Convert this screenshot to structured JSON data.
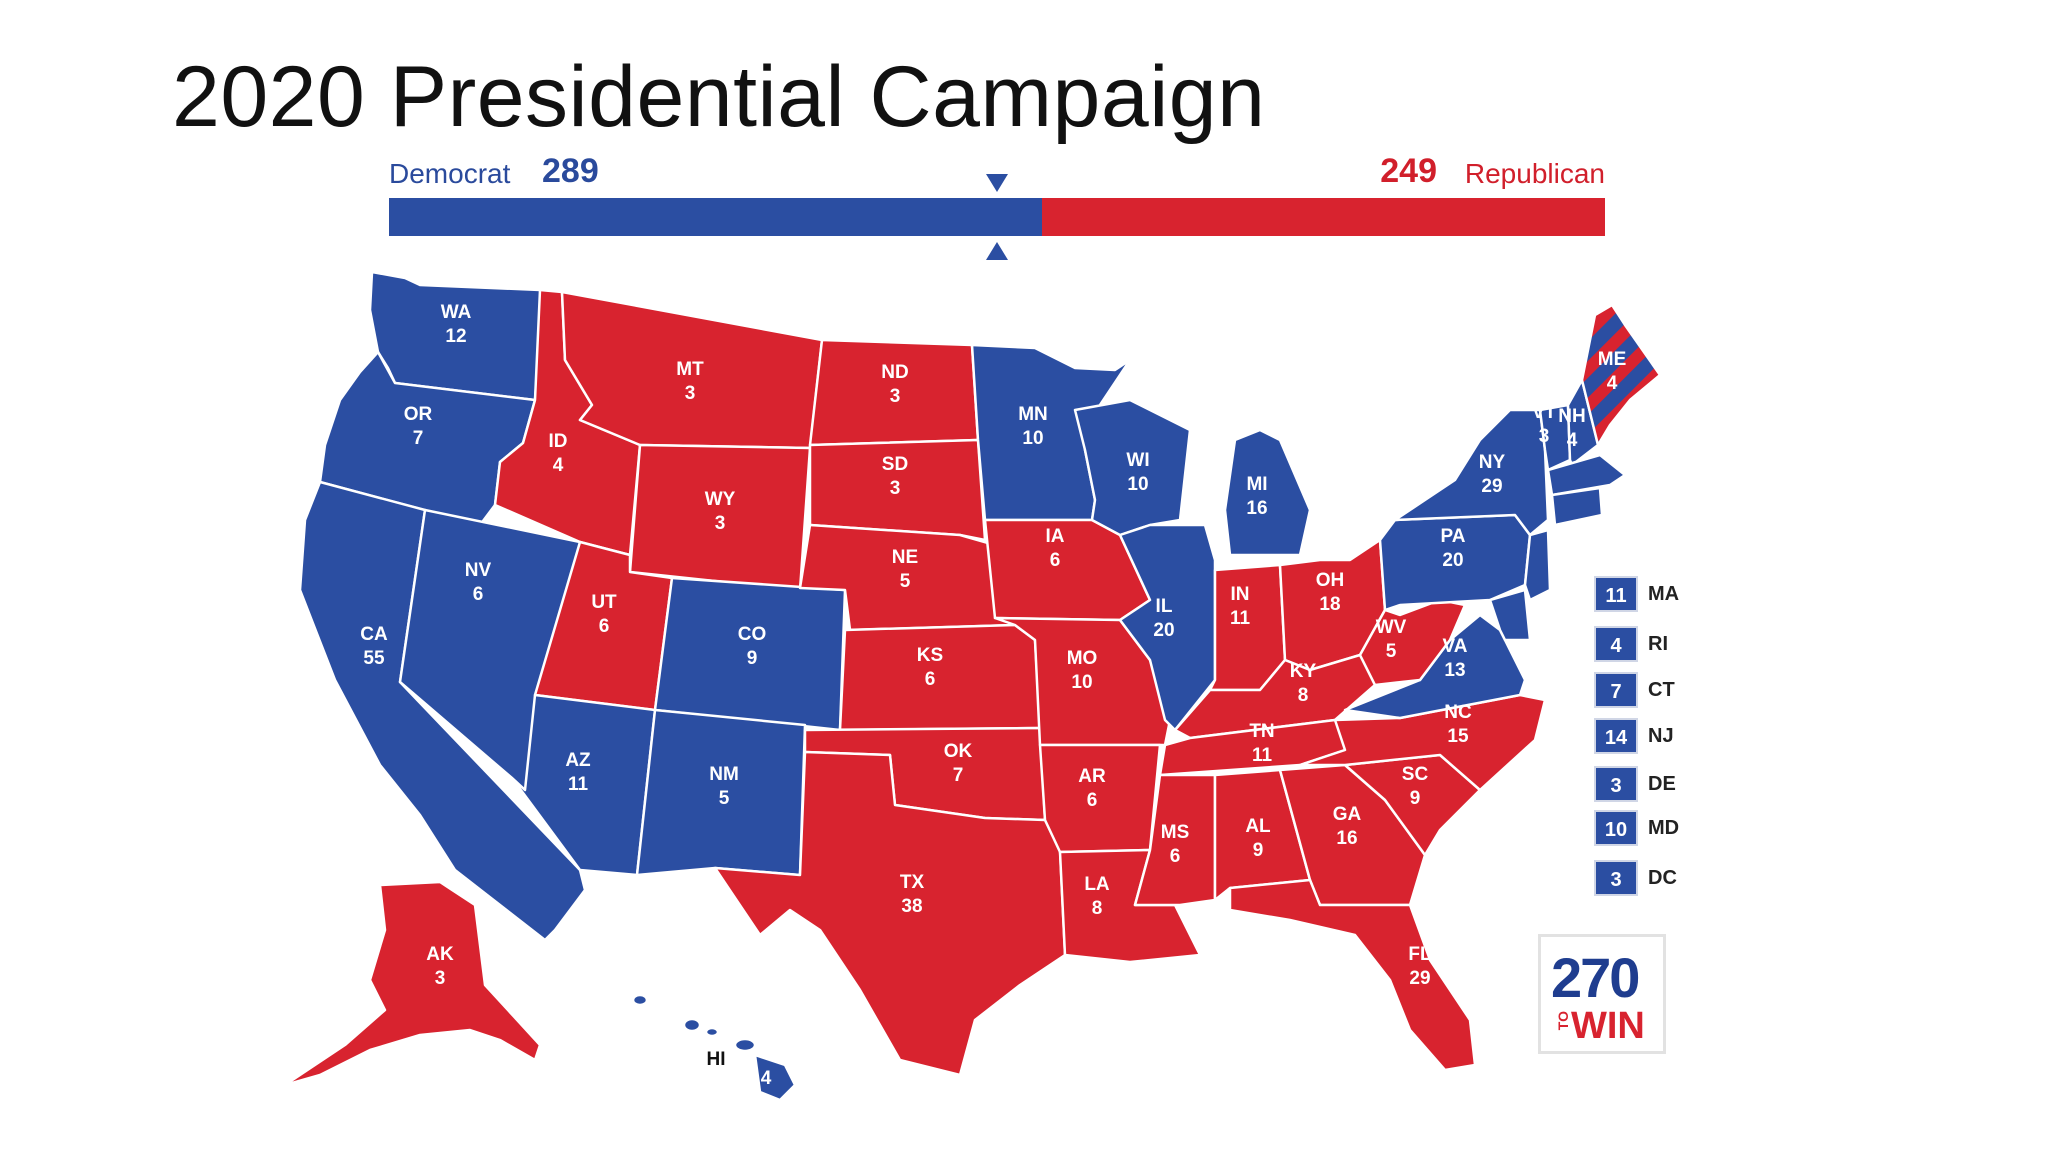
{
  "slide": {
    "title": "2020 Presidential Campaign"
  },
  "tally": {
    "democrat_label": "Democrat",
    "democrat_votes": "289",
    "republican_votes": "249",
    "republican_label": "Republican",
    "democrat_share": 0.537
  },
  "colors": {
    "democrat": "#2b4ea2",
    "republican": "#d8232f"
  },
  "states": {
    "WA": {
      "abbr": "WA",
      "ev": "12",
      "party": "D"
    },
    "OR": {
      "abbr": "OR",
      "ev": "7",
      "party": "D"
    },
    "CA": {
      "abbr": "CA",
      "ev": "55",
      "party": "D"
    },
    "NV": {
      "abbr": "NV",
      "ev": "6",
      "party": "D"
    },
    "ID": {
      "abbr": "ID",
      "ev": "4",
      "party": "R"
    },
    "MT": {
      "abbr": "MT",
      "ev": "3",
      "party": "R"
    },
    "WY": {
      "abbr": "WY",
      "ev": "3",
      "party": "R"
    },
    "UT": {
      "abbr": "UT",
      "ev": "6",
      "party": "R"
    },
    "CO": {
      "abbr": "CO",
      "ev": "9",
      "party": "D"
    },
    "AZ": {
      "abbr": "AZ",
      "ev": "11",
      "party": "D"
    },
    "NM": {
      "abbr": "NM",
      "ev": "5",
      "party": "D"
    },
    "ND": {
      "abbr": "ND",
      "ev": "3",
      "party": "R"
    },
    "SD": {
      "abbr": "SD",
      "ev": "3",
      "party": "R"
    },
    "NE": {
      "abbr": "NE",
      "ev": "5",
      "party": "R"
    },
    "KS": {
      "abbr": "KS",
      "ev": "6",
      "party": "R"
    },
    "OK": {
      "abbr": "OK",
      "ev": "7",
      "party": "R"
    },
    "TX": {
      "abbr": "TX",
      "ev": "38",
      "party": "R"
    },
    "MN": {
      "abbr": "MN",
      "ev": "10",
      "party": "D"
    },
    "IA": {
      "abbr": "IA",
      "ev": "6",
      "party": "R"
    },
    "MO": {
      "abbr": "MO",
      "ev": "10",
      "party": "R"
    },
    "AR": {
      "abbr": "AR",
      "ev": "6",
      "party": "R"
    },
    "LA": {
      "abbr": "LA",
      "ev": "8",
      "party": "R"
    },
    "WI": {
      "abbr": "WI",
      "ev": "10",
      "party": "D"
    },
    "IL": {
      "abbr": "IL",
      "ev": "20",
      "party": "D"
    },
    "MI": {
      "abbr": "MI",
      "ev": "16",
      "party": "D"
    },
    "IN": {
      "abbr": "IN",
      "ev": "11",
      "party": "R"
    },
    "OH": {
      "abbr": "OH",
      "ev": "18",
      "party": "R"
    },
    "KY": {
      "abbr": "KY",
      "ev": "8",
      "party": "R"
    },
    "TN": {
      "abbr": "TN",
      "ev": "11",
      "party": "R"
    },
    "MS": {
      "abbr": "MS",
      "ev": "6",
      "party": "R"
    },
    "AL": {
      "abbr": "AL",
      "ev": "9",
      "party": "R"
    },
    "GA": {
      "abbr": "GA",
      "ev": "16",
      "party": "R"
    },
    "FL": {
      "abbr": "FL",
      "ev": "29",
      "party": "R"
    },
    "SC": {
      "abbr": "SC",
      "ev": "9",
      "party": "R"
    },
    "NC": {
      "abbr": "NC",
      "ev": "15",
      "party": "R"
    },
    "VA": {
      "abbr": "VA",
      "ev": "13",
      "party": "D"
    },
    "WV": {
      "abbr": "WV",
      "ev": "5",
      "party": "R"
    },
    "PA": {
      "abbr": "PA",
      "ev": "20",
      "party": "D"
    },
    "NY": {
      "abbr": "NY",
      "ev": "29",
      "party": "D"
    },
    "VT": {
      "abbr": "VT",
      "ev": "3",
      "party": "D"
    },
    "NH": {
      "abbr": "NH",
      "ev": "4",
      "party": "D"
    },
    "ME": {
      "abbr": "ME",
      "ev": "4",
      "party": "split"
    },
    "AK": {
      "abbr": "AK",
      "ev": "3",
      "party": "R"
    },
    "HI": {
      "abbr": "HI",
      "ev": "4",
      "party": "D"
    }
  },
  "legend": [
    {
      "ev": "11",
      "abbr": "MA"
    },
    {
      "ev": "4",
      "abbr": "RI"
    },
    {
      "ev": "7",
      "abbr": "CT"
    },
    {
      "ev": "14",
      "abbr": "NJ"
    },
    {
      "ev": "3",
      "abbr": "DE"
    },
    {
      "ev": "10",
      "abbr": "MD"
    },
    {
      "ev": "3",
      "abbr": "DC"
    }
  ],
  "logo": {
    "number": "270",
    "to": "TO",
    "win": "WIN"
  }
}
